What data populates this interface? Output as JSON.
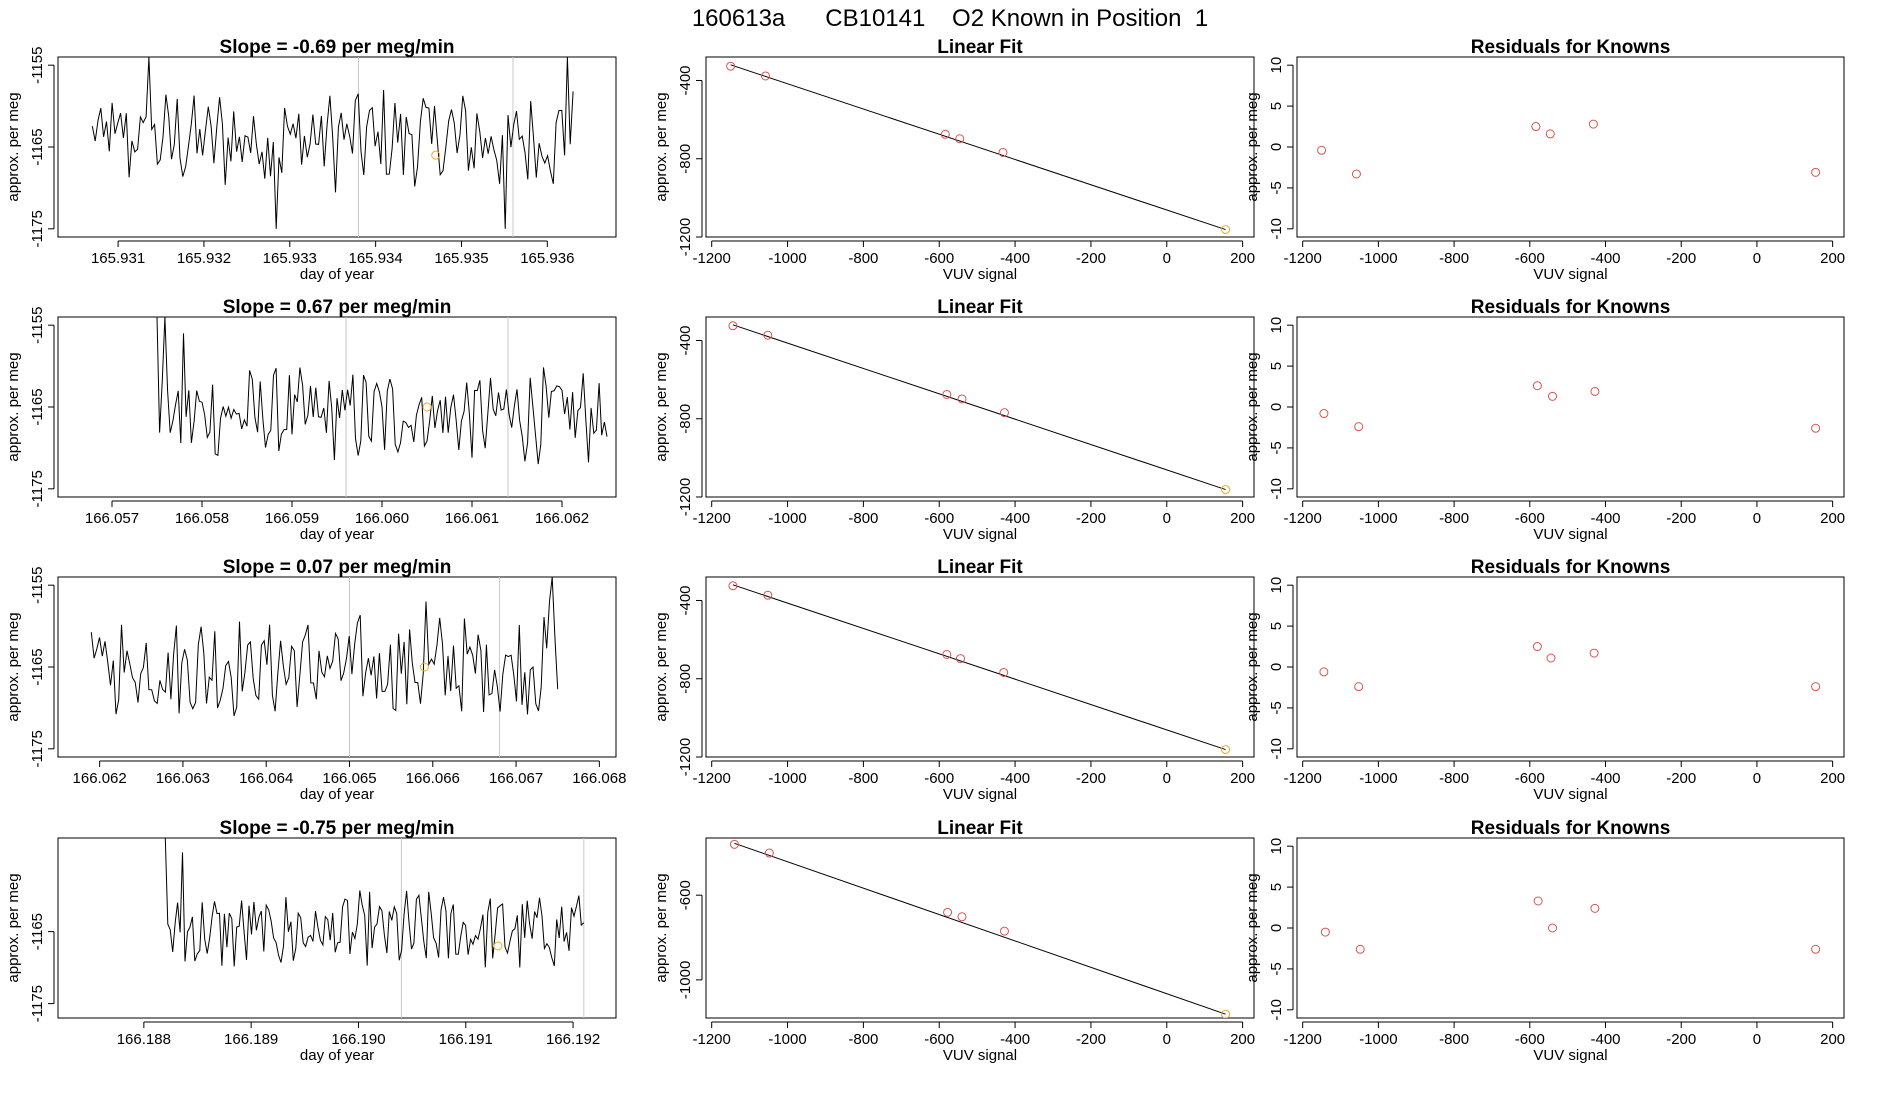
{
  "page": {
    "title": "160613a      CB10141    O2 Known in Position  1"
  },
  "colors": {
    "line": "#000000",
    "marker_red": "#d9534f",
    "marker_orange": "#f0a830",
    "vline": "#c8c8c8",
    "axes": "#000000"
  },
  "chart_data": [
    {
      "type": "line",
      "title": "Slope =  -0.69  per meg/min",
      "xlabel": "day of year",
      "ylabel": "approx. per meg",
      "xlim": [
        165.9303,
        165.9368
      ],
      "ylim": [
        -1176,
        -1154
      ],
      "xticks": [
        "165.931",
        "165.932",
        "165.933",
        "165.934",
        "165.935",
        "165.936"
      ],
      "yticks": [
        "-1155",
        "-1165",
        "-1175"
      ],
      "vlines": [
        165.9338,
        165.9356
      ],
      "series_start": 165.9307,
      "series_end": 165.9363,
      "series_base": -1164,
      "series_amp": 5,
      "spikes": [
        [
          0.12,
          -1154
        ],
        [
          0.99,
          -1154
        ],
        [
          0.38,
          -1175
        ],
        [
          0.86,
          -1175
        ]
      ],
      "highlight_point": [
        165.9347,
        -1166
      ]
    },
    {
      "type": "scatter",
      "title": "Linear Fit",
      "xlabel": "VUV signal",
      "ylabel": "approx. per meg",
      "xlim": [
        -1215,
        230
      ],
      "ylim": [
        -1200,
        -280
      ],
      "xticks": [
        "-1200",
        "-1000",
        "-800",
        "-600",
        "-400",
        "-200",
        "0",
        "200"
      ],
      "yticks": [
        "-400",
        "-800",
        "-1200"
      ],
      "x": [
        -1150,
        -1058,
        -584,
        -546,
        -432,
        155
      ],
      "y": [
        -327,
        -377,
        -675,
        -698,
        -768,
        -1162
      ],
      "fit_line": [
        [
          -1150,
          -320
        ],
        [
          155,
          -1162
        ]
      ],
      "highlight_index": 5
    },
    {
      "type": "scatter",
      "title": "Residuals for Knowns",
      "xlabel": "VUV signal",
      "ylabel": "approx. per meg",
      "xlim": [
        -1215,
        230
      ],
      "ylim": [
        -11,
        11
      ],
      "xticks": [
        "-1200",
        "-1000",
        "-800",
        "-600",
        "-400",
        "-200",
        "0",
        "200"
      ],
      "yticks": [
        "10",
        "5",
        "0",
        "-5",
        "-10"
      ],
      "x": [
        -1150,
        -1058,
        -584,
        -546,
        -432,
        155
      ],
      "y": [
        -0.4,
        -3.3,
        2.5,
        1.6,
        2.8,
        -3.1
      ]
    },
    {
      "type": "line",
      "title": "Slope =  0.67  per meg/min",
      "xlabel": "day of year",
      "ylabel": "approx. per meg",
      "xlim": [
        166.0564,
        166.0626
      ],
      "ylim": [
        -1176,
        -1154
      ],
      "xticks": [
        "166.057",
        "166.058",
        "166.059",
        "166.060",
        "166.061",
        "166.062"
      ],
      "yticks": [
        "-1155",
        "-1165",
        "-1175"
      ],
      "vlines": [
        166.0596,
        166.0614
      ],
      "series_start": 166.0575,
      "series_end": 166.0625,
      "series_base": -1166,
      "series_amp": 4.5,
      "spikes": [
        [
          0.0,
          -1154
        ],
        [
          0.02,
          -1154
        ],
        [
          0.06,
          -1156
        ]
      ],
      "highlight_point": [
        166.0605,
        -1165
      ]
    },
    {
      "type": "scatter",
      "title": "Linear Fit",
      "xlabel": "VUV signal",
      "ylabel": "approx. per meg",
      "xlim": [
        -1215,
        230
      ],
      "ylim": [
        -1200,
        -280
      ],
      "xticks": [
        "-1200",
        "-1000",
        "-800",
        "-600",
        "-400",
        "-200",
        "0",
        "200"
      ],
      "yticks": [
        "-400",
        "-800",
        "-1200"
      ],
      "x": [
        -1144,
        -1052,
        -580,
        -540,
        -428,
        155
      ],
      "y": [
        -325,
        -373,
        -676,
        -699,
        -769,
        -1162
      ],
      "fit_line": [
        [
          -1144,
          -320
        ],
        [
          155,
          -1162
        ]
      ],
      "highlight_index": 5
    },
    {
      "type": "scatter",
      "title": "Residuals for Knowns",
      "xlabel": "VUV signal",
      "ylabel": "approx. per meg",
      "xlim": [
        -1215,
        230
      ],
      "ylim": [
        -11,
        11
      ],
      "xticks": [
        "-1200",
        "-1000",
        "-800",
        "-600",
        "-400",
        "-200",
        "0",
        "200"
      ],
      "yticks": [
        "10",
        "5",
        "0",
        "-5",
        "-10"
      ],
      "x": [
        -1144,
        -1052,
        -580,
        -540,
        -428,
        155
      ],
      "y": [
        -0.8,
        -2.4,
        2.6,
        1.3,
        1.9,
        -2.6
      ]
    },
    {
      "type": "line",
      "title": "Slope =  0.07  per meg/min",
      "xlabel": "day of year",
      "ylabel": "approx. per meg",
      "xlim": [
        166.0615,
        166.0682
      ],
      "ylim": [
        -1176,
        -1154
      ],
      "xticks": [
        "166.062",
        "166.063",
        "166.064",
        "166.065",
        "166.066",
        "166.067",
        "166.068"
      ],
      "yticks": [
        "-1155",
        "-1165",
        "-1175"
      ],
      "vlines": [
        166.065,
        166.0668
      ],
      "series_start": 166.0619,
      "series_end": 166.0675,
      "series_base": -1165,
      "series_amp": 5,
      "spikes": [
        [
          0.99,
          -1154
        ],
        [
          0.98,
          -1157
        ],
        [
          0.72,
          -1157
        ]
      ],
      "highlight_point": [
        166.0659,
        -1165
      ]
    },
    {
      "type": "scatter",
      "title": "Linear Fit",
      "xlabel": "VUV signal",
      "ylabel": "approx. per meg",
      "xlim": [
        -1215,
        230
      ],
      "ylim": [
        -1200,
        -280
      ],
      "xticks": [
        "-1200",
        "-1000",
        "-800",
        "-600",
        "-400",
        "-200",
        "0",
        "200"
      ],
      "yticks": [
        "-400",
        "-800",
        "-1200"
      ],
      "x": [
        -1144,
        -1052,
        -580,
        -544,
        -430,
        155
      ],
      "y": [
        -325,
        -373,
        -676,
        -697,
        -768,
        -1162
      ],
      "fit_line": [
        [
          -1144,
          -320
        ],
        [
          155,
          -1162
        ]
      ],
      "highlight_index": 5
    },
    {
      "type": "scatter",
      "title": "Residuals for Knowns",
      "xlabel": "VUV signal",
      "ylabel": "approx. per meg",
      "xlim": [
        -1215,
        230
      ],
      "ylim": [
        -11,
        11
      ],
      "xticks": [
        "-1200",
        "-1000",
        "-800",
        "-600",
        "-400",
        "-200",
        "0",
        "200"
      ],
      "yticks": [
        "10",
        "5",
        "0",
        "-5",
        "-10"
      ],
      "x": [
        -1144,
        -1052,
        -580,
        -544,
        -430,
        155
      ],
      "y": [
        -0.6,
        -2.4,
        2.5,
        1.1,
        1.7,
        -2.4
      ]
    },
    {
      "type": "line",
      "title": "Slope =  -0.75  per meg/min",
      "xlabel": "day of year",
      "ylabel": "approx. per meg",
      "xlim": [
        166.1872,
        166.1924
      ],
      "ylim": [
        -1177,
        -1152
      ],
      "xticks": [
        "166.188",
        "166.189",
        "166.190",
        "166.191",
        "166.192"
      ],
      "yticks": [
        "-1165",
        "-1175"
      ],
      "vlines": [
        166.1904,
        166.1921
      ],
      "series_start": 166.1882,
      "series_end": 166.1921,
      "series_base": -1165,
      "series_amp": 4.5,
      "spikes": [
        [
          0.0,
          -1152
        ],
        [
          0.04,
          -1154
        ],
        [
          0.99,
          -1160
        ]
      ],
      "highlight_point": [
        166.1913,
        -1167
      ]
    },
    {
      "type": "scatter",
      "title": "Linear Fit",
      "xlabel": "VUV signal",
      "ylabel": "approx. per meg",
      "xlim": [
        -1215,
        230
      ],
      "ylim": [
        -1180,
        -330
      ],
      "xticks": [
        "-1200",
        "-1000",
        "-800",
        "-600",
        "-400",
        "-200",
        "0",
        "200"
      ],
      "yticks": [
        "-600",
        "-1000"
      ],
      "x": [
        -1140,
        -1048,
        -578,
        -540,
        -428,
        155
      ],
      "y": [
        -360,
        -401,
        -681,
        -702,
        -770,
        -1162
      ],
      "fit_line": [
        [
          -1140,
          -355
        ],
        [
          155,
          -1162
        ]
      ],
      "highlight_index": 5
    },
    {
      "type": "scatter",
      "title": "Residuals for Knowns",
      "xlabel": "VUV signal",
      "ylabel": "approx. per meg",
      "xlim": [
        -1215,
        230
      ],
      "ylim": [
        -11,
        11
      ],
      "xticks": [
        "-1200",
        "-1000",
        "-800",
        "-600",
        "-400",
        "-200",
        "0",
        "200"
      ],
      "yticks": [
        "10",
        "5",
        "0",
        "-5",
        "-10"
      ],
      "x": [
        -1140,
        -1048,
        -578,
        -540,
        -428,
        155
      ],
      "y": [
        -0.5,
        -2.6,
        3.3,
        0.0,
        2.4,
        -2.6
      ]
    }
  ]
}
